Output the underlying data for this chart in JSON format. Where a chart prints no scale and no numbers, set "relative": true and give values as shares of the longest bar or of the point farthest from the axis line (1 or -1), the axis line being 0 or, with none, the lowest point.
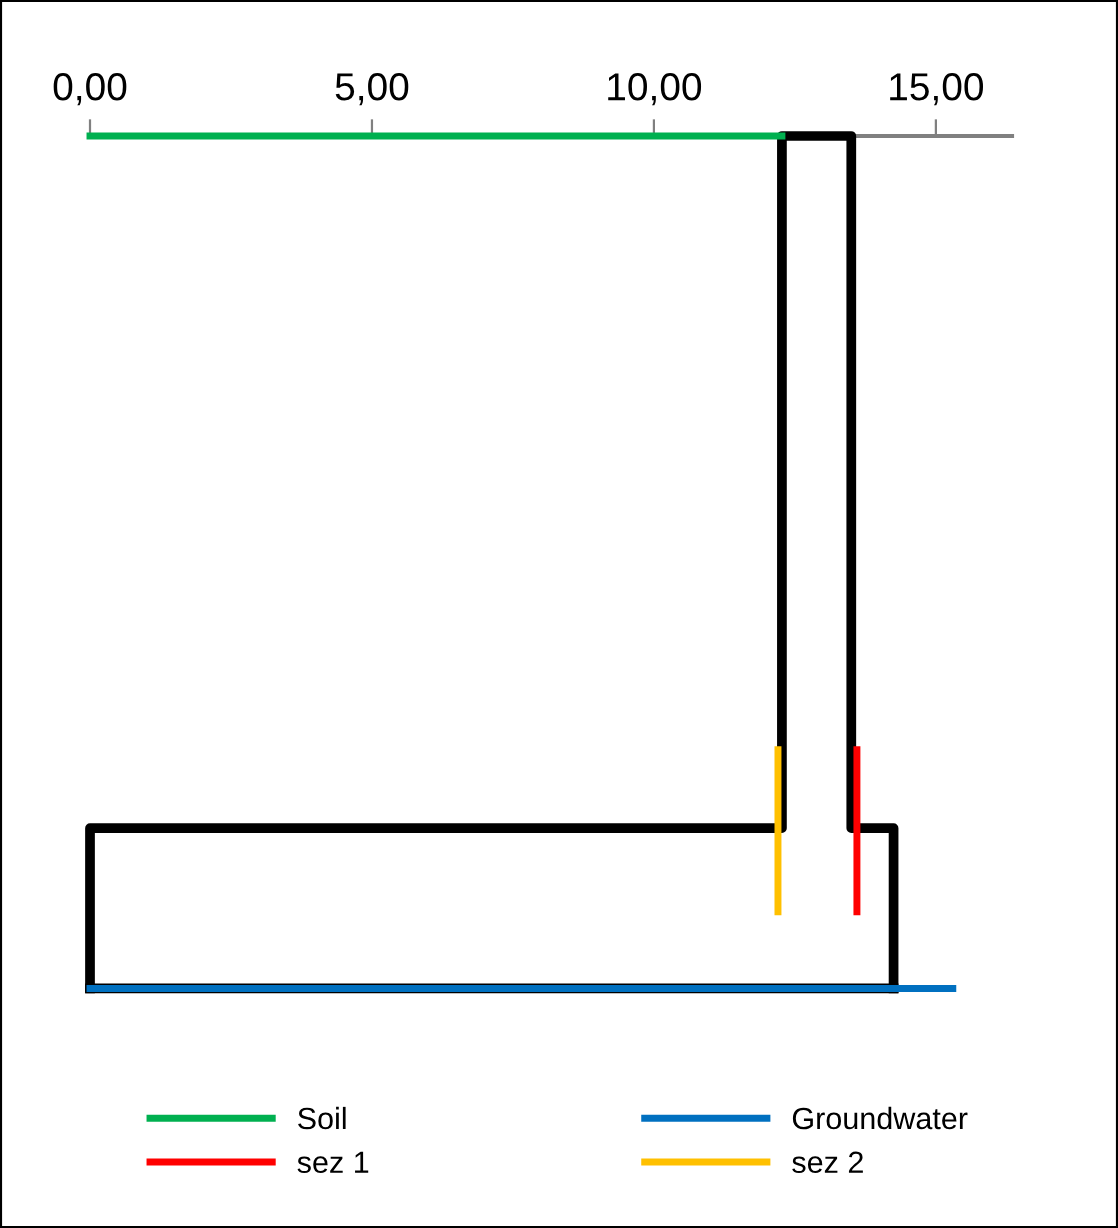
{
  "chart_data": {
    "type": "line",
    "relative": true,
    "xlim": [
      0,
      16.35
    ],
    "xticks": [
      {
        "value": 0,
        "label": "0,00"
      },
      {
        "value": 5,
        "label": "5,00"
      },
      {
        "value": 10,
        "label": "10,00"
      },
      {
        "value": 15,
        "label": "15,00"
      }
    ],
    "tick_labels": "x",
    "grid": false,
    "legend": "bottom",
    "marker": "none",
    "line_style": "solid",
    "series": [
      {
        "color": "#000000",
        "x": [
          0,
          0,
          12.27,
          12.27,
          13.5,
          13.5,
          14.25,
          14.25
        ],
        "values": [
          -1,
          -0.812,
          -0.812,
          0,
          0,
          -0.812,
          -0.812,
          -1
        ]
      },
      {
        "color": "#000000",
        "x": [
          0,
          14.25
        ],
        "values": [
          -1,
          -1
        ]
      },
      {
        "name": "Soil",
        "color": "#00b050",
        "x": [
          0,
          12.27
        ],
        "values": [
          0,
          0
        ]
      },
      {
        "name": "Groundwater",
        "color": "#0070c0",
        "x": [
          0,
          15.3
        ],
        "values": [
          -1,
          -1
        ]
      },
      {
        "name": "sez 1",
        "color": "#ff0000",
        "x": [
          13.6,
          13.6
        ],
        "values": [
          -0.72,
          -0.91
        ]
      },
      {
        "name": "sez 2",
        "color": "#ffc000",
        "x": [
          12.2,
          12.2
        ],
        "values": [
          -0.72,
          -0.91
        ]
      }
    ]
  }
}
